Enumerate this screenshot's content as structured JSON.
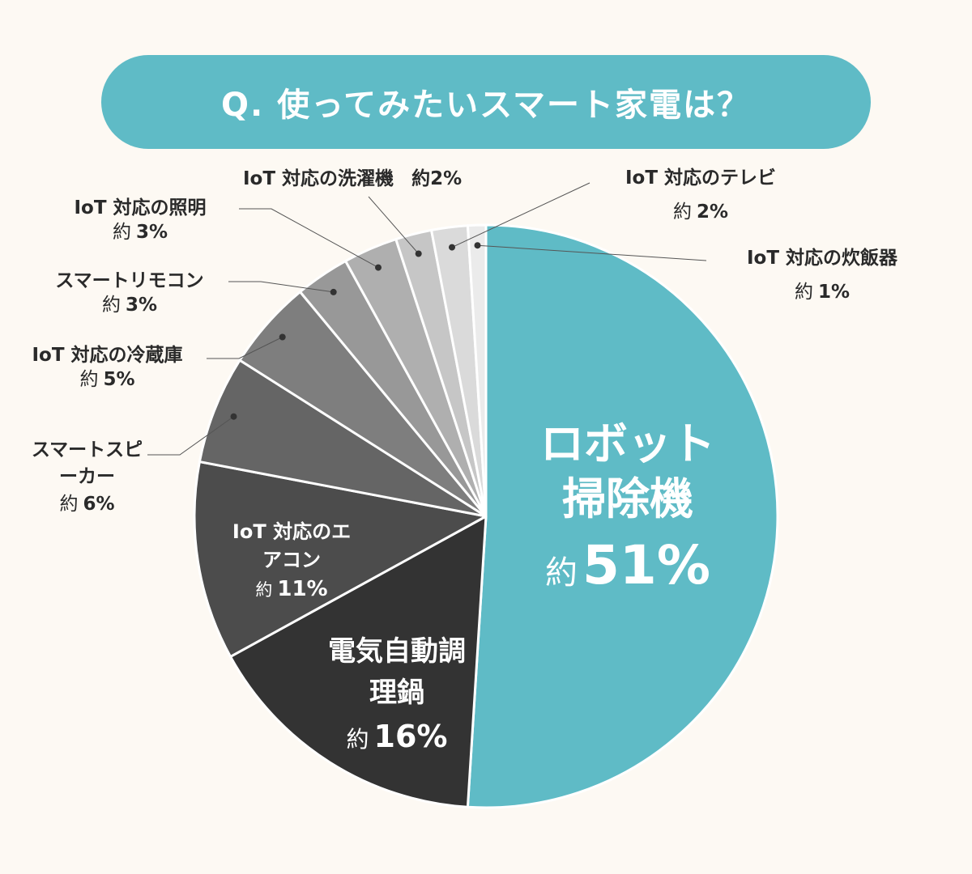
{
  "title": "Q. 使ってみたいスマート家電は？",
  "colors": {
    "background": "#fdf9f3",
    "accent": "#5fbbc6",
    "text": "#2a2a2a",
    "separator": "#ffffff",
    "leader": "#555555"
  },
  "chart_data": {
    "type": "pie",
    "title": "Q. 使ってみたいスマート家電は？",
    "start": "12 o'clock, clockwise",
    "slices": [
      {
        "label": "ロボット掃除機",
        "value": 51,
        "value_text": "51%",
        "prefix": "約",
        "color": "#5fbbc6"
      },
      {
        "label": "電気自動調理鍋",
        "value": 16,
        "value_text": "16%",
        "prefix": "約",
        "color": "#333333"
      },
      {
        "label": "IoT 対応のエアコン",
        "value": 11,
        "value_text": "11%",
        "prefix": "約",
        "color": "#4c4c4c"
      },
      {
        "label": "スマートスピーカー",
        "value": 6,
        "value_text": "6%",
        "prefix": "約",
        "color": "#656565"
      },
      {
        "label": "IoT 対応の冷蔵庫",
        "value": 5,
        "value_text": "5%",
        "prefix": "約",
        "color": "#7e7e7e"
      },
      {
        "label": "スマートリモコン",
        "value": 3,
        "value_text": "3%",
        "prefix": "約",
        "color": "#989898"
      },
      {
        "label": "IoT 対応の照明",
        "value": 3,
        "value_text": "3%",
        "prefix": "約",
        "color": "#afafaf"
      },
      {
        "label": "IoT 対応の洗濯機",
        "value": 2,
        "value_text": "2%",
        "prefix": "約",
        "color": "#c6c6c6"
      },
      {
        "label": "IoT 対応のテレビ",
        "value": 2,
        "value_text": "2%",
        "prefix": "約",
        "color": "#dadada"
      },
      {
        "label": "IoT 対応の炊飯器",
        "value": 1,
        "value_text": "1%",
        "prefix": "約",
        "color": "#ebebeb"
      }
    ]
  }
}
